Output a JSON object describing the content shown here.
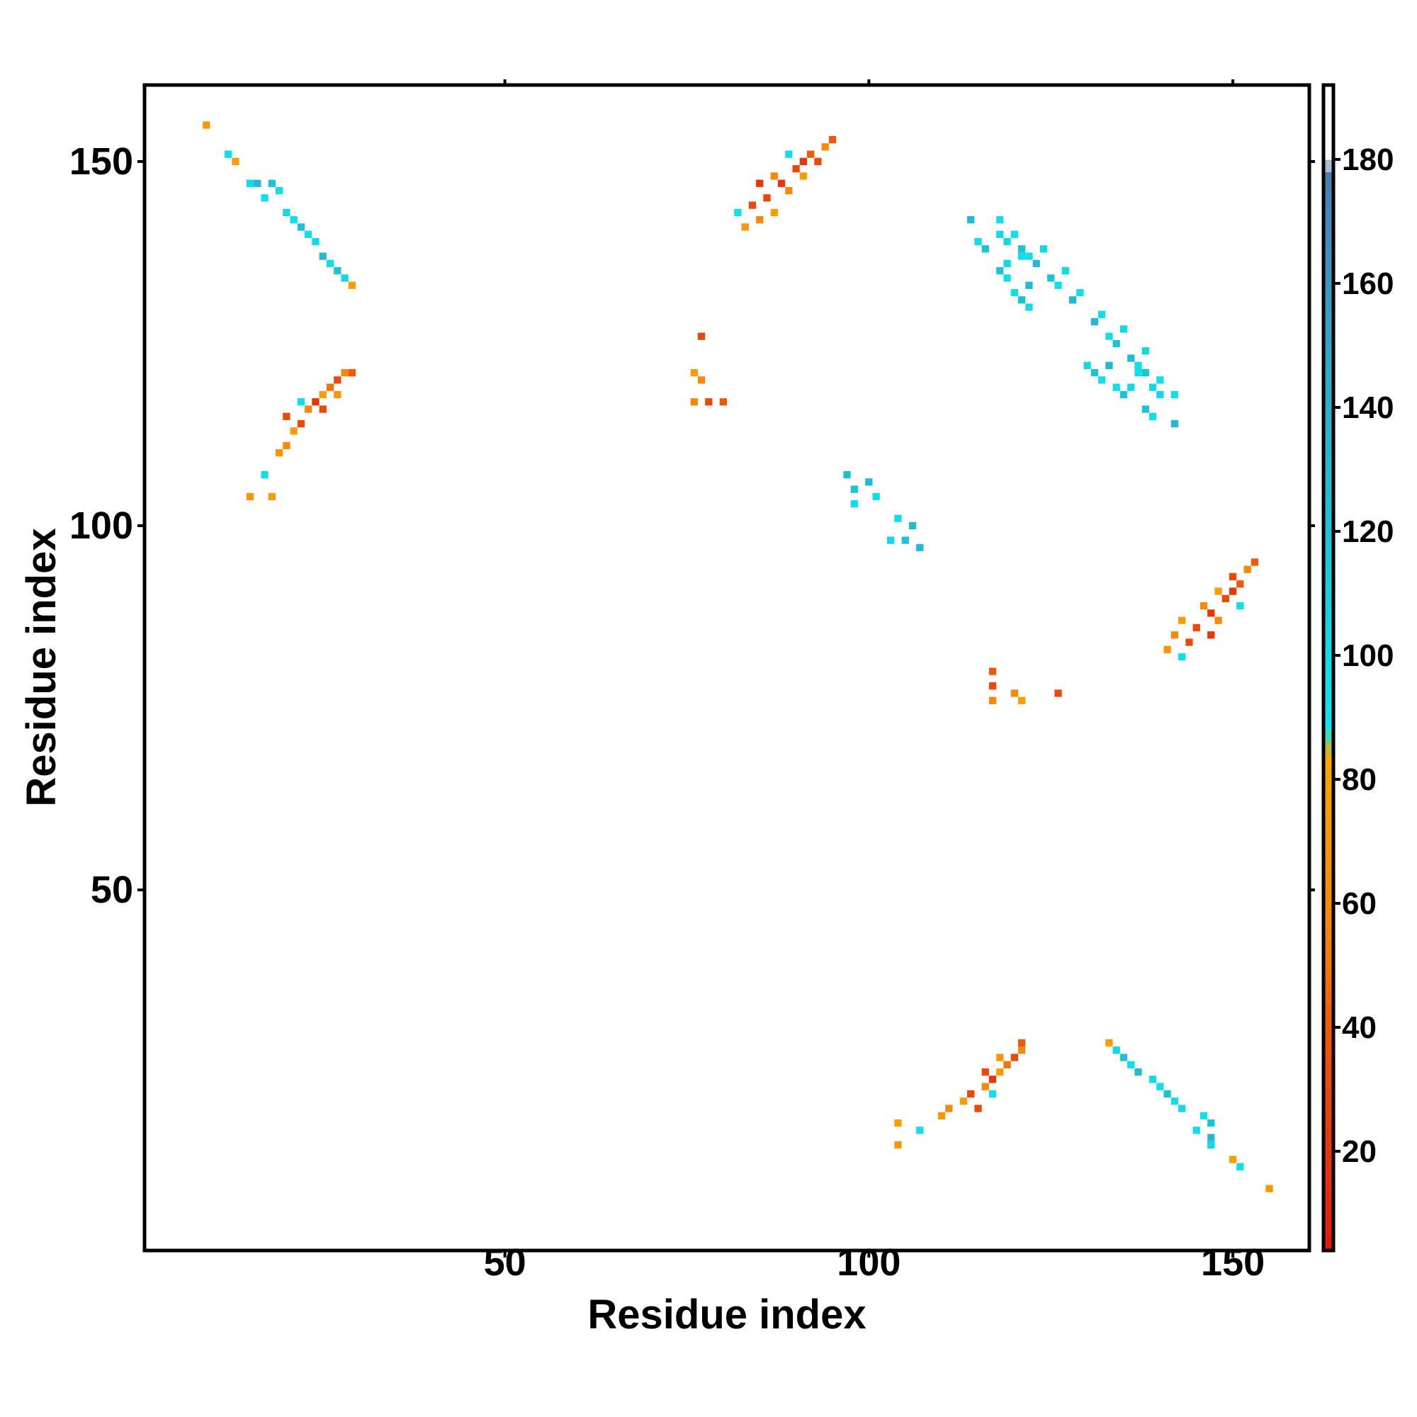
{
  "chart_data": {
    "type": "heatmap",
    "title": "",
    "xlabel": "Residue index",
    "ylabel": "Residue index",
    "xlim": [
      0.5,
      160.5
    ],
    "ylim": [
      0.5,
      160.5
    ],
    "x_ticks": [
      50,
      100,
      150
    ],
    "y_ticks": [
      50,
      100,
      150
    ],
    "x_tick_labels": [
      "50",
      "100",
      "150"
    ],
    "y_tick_labels": [
      "50",
      "100",
      "150"
    ],
    "colorbar": {
      "min": 4,
      "max": 192,
      "ticks": [
        20,
        40,
        60,
        80,
        100,
        120,
        140,
        160,
        180
      ],
      "tick_labels": [
        "20",
        "40",
        "60",
        "80",
        "100",
        "120",
        "140",
        "160",
        "180"
      ],
      "stops": [
        {
          "value": 4,
          "color": "#e2180c"
        },
        {
          "value": 40,
          "color": "#ef5a08"
        },
        {
          "value": 55,
          "color": "#f5830a"
        },
        {
          "value": 84,
          "color": "#f9a804"
        },
        {
          "value": 88,
          "color": "#0de6ee"
        },
        {
          "value": 120,
          "color": "#1cc3d8"
        },
        {
          "value": 150,
          "color": "#2fa6cc"
        },
        {
          "value": 178,
          "color": "#4a7fae"
        },
        {
          "value": 180,
          "color": "#ffffff"
        },
        {
          "value": 192,
          "color": "#ffffff"
        }
      ]
    },
    "contacts": [
      {
        "i": 9,
        "j": 155,
        "value": 70
      },
      {
        "i": 12,
        "j": 151,
        "value": 95
      },
      {
        "i": 13,
        "j": 150,
        "value": 75
      },
      {
        "i": 15,
        "j": 147,
        "value": 100
      },
      {
        "i": 16,
        "j": 147,
        "value": 130
      },
      {
        "i": 17,
        "j": 145,
        "value": 95
      },
      {
        "i": 18,
        "j": 147,
        "value": 120
      },
      {
        "i": 19,
        "j": 146,
        "value": 95
      },
      {
        "i": 20,
        "j": 143,
        "value": 100
      },
      {
        "i": 21,
        "j": 142,
        "value": 95
      },
      {
        "i": 22,
        "j": 141,
        "value": 120
      },
      {
        "i": 23,
        "j": 140,
        "value": 95
      },
      {
        "i": 24,
        "j": 139,
        "value": 100
      },
      {
        "i": 25,
        "j": 137,
        "value": 130
      },
      {
        "i": 26,
        "j": 136,
        "value": 95
      },
      {
        "i": 27,
        "j": 135,
        "value": 120
      },
      {
        "i": 28,
        "j": 134,
        "value": 100
      },
      {
        "i": 29,
        "j": 133,
        "value": 75
      },
      {
        "i": 15,
        "j": 104,
        "value": 70
      },
      {
        "i": 17,
        "j": 107,
        "value": 95
      },
      {
        "i": 18,
        "j": 104,
        "value": 75
      },
      {
        "i": 19,
        "j": 110,
        "value": 70
      },
      {
        "i": 20,
        "j": 111,
        "value": 60
      },
      {
        "i": 21,
        "j": 113,
        "value": 75
      },
      {
        "i": 22,
        "j": 114,
        "value": 30
      },
      {
        "i": 23,
        "j": 116,
        "value": 60
      },
      {
        "i": 24,
        "j": 117,
        "value": 20
      },
      {
        "i": 25,
        "j": 118,
        "value": 75
      },
      {
        "i": 26,
        "j": 119,
        "value": 50
      },
      {
        "i": 27,
        "j": 120,
        "value": 30
      },
      {
        "i": 28,
        "j": 121,
        "value": 60
      },
      {
        "i": 29,
        "j": 121,
        "value": 40
      },
      {
        "i": 20,
        "j": 115,
        "value": 30
      },
      {
        "i": 22,
        "j": 117,
        "value": 95
      },
      {
        "i": 25,
        "j": 116,
        "value": 30
      },
      {
        "i": 27,
        "j": 118,
        "value": 70
      },
      {
        "i": 82,
        "j": 143,
        "value": 95
      },
      {
        "i": 83,
        "j": 141,
        "value": 70
      },
      {
        "i": 84,
        "j": 144,
        "value": 30
      },
      {
        "i": 85,
        "j": 142,
        "value": 60
      },
      {
        "i": 86,
        "j": 145,
        "value": 30
      },
      {
        "i": 87,
        "j": 143,
        "value": 75
      },
      {
        "i": 88,
        "j": 147,
        "value": 20
      },
      {
        "i": 89,
        "j": 146,
        "value": 60
      },
      {
        "i": 90,
        "j": 149,
        "value": 30
      },
      {
        "i": 91,
        "j": 148,
        "value": 75
      },
      {
        "i": 92,
        "j": 151,
        "value": 40
      },
      {
        "i": 93,
        "j": 150,
        "value": 30
      },
      {
        "i": 94,
        "j": 152,
        "value": 60
      },
      {
        "i": 95,
        "j": 153,
        "value": 40
      },
      {
        "i": 89,
        "j": 151,
        "value": 95
      },
      {
        "i": 85,
        "j": 147,
        "value": 20
      },
      {
        "i": 87,
        "j": 148,
        "value": 60
      },
      {
        "i": 91,
        "j": 150,
        "value": 20
      },
      {
        "i": 77,
        "j": 126,
        "value": 30
      },
      {
        "i": 76,
        "j": 121,
        "value": 75
      },
      {
        "i": 77,
        "j": 120,
        "value": 60
      },
      {
        "i": 80,
        "j": 117,
        "value": 40
      },
      {
        "i": 78,
        "j": 117,
        "value": 30
      },
      {
        "i": 76,
        "j": 117,
        "value": 60
      },
      {
        "i": 118,
        "j": 142,
        "value": 95
      },
      {
        "i": 119,
        "j": 139,
        "value": 100
      },
      {
        "i": 120,
        "j": 140,
        "value": 95
      },
      {
        "i": 121,
        "j": 138,
        "value": 120
      },
      {
        "i": 122,
        "j": 137,
        "value": 95
      },
      {
        "i": 123,
        "j": 136,
        "value": 130
      },
      {
        "i": 124,
        "j": 138,
        "value": 100
      },
      {
        "i": 125,
        "j": 134,
        "value": 120
      },
      {
        "i": 126,
        "j": 133,
        "value": 95
      },
      {
        "i": 127,
        "j": 135,
        "value": 100
      },
      {
        "i": 128,
        "j": 131,
        "value": 130
      },
      {
        "i": 129,
        "j": 132,
        "value": 95
      },
      {
        "i": 130,
        "j": 122,
        "value": 100
      },
      {
        "i": 131,
        "j": 121,
        "value": 120
      },
      {
        "i": 132,
        "j": 120,
        "value": 95
      },
      {
        "i": 133,
        "j": 122,
        "value": 130
      },
      {
        "i": 134,
        "j": 119,
        "value": 95
      },
      {
        "i": 135,
        "j": 118,
        "value": 120
      },
      {
        "i": 136,
        "j": 119,
        "value": 100
      },
      {
        "i": 137,
        "j": 121,
        "value": 95
      },
      {
        "i": 138,
        "j": 116,
        "value": 120
      },
      {
        "i": 139,
        "j": 115,
        "value": 95
      },
      {
        "i": 140,
        "j": 118,
        "value": 100
      },
      {
        "i": 142,
        "j": 114,
        "value": 130
      },
      {
        "i": 100,
        "j": 106,
        "value": 130
      },
      {
        "i": 101,
        "j": 104,
        "value": 95
      },
      {
        "i": 103,
        "j": 98,
        "value": 100
      },
      {
        "i": 105,
        "j": 98,
        "value": 120
      },
      {
        "i": 107,
        "j": 97,
        "value": 130
      }
    ]
  }
}
